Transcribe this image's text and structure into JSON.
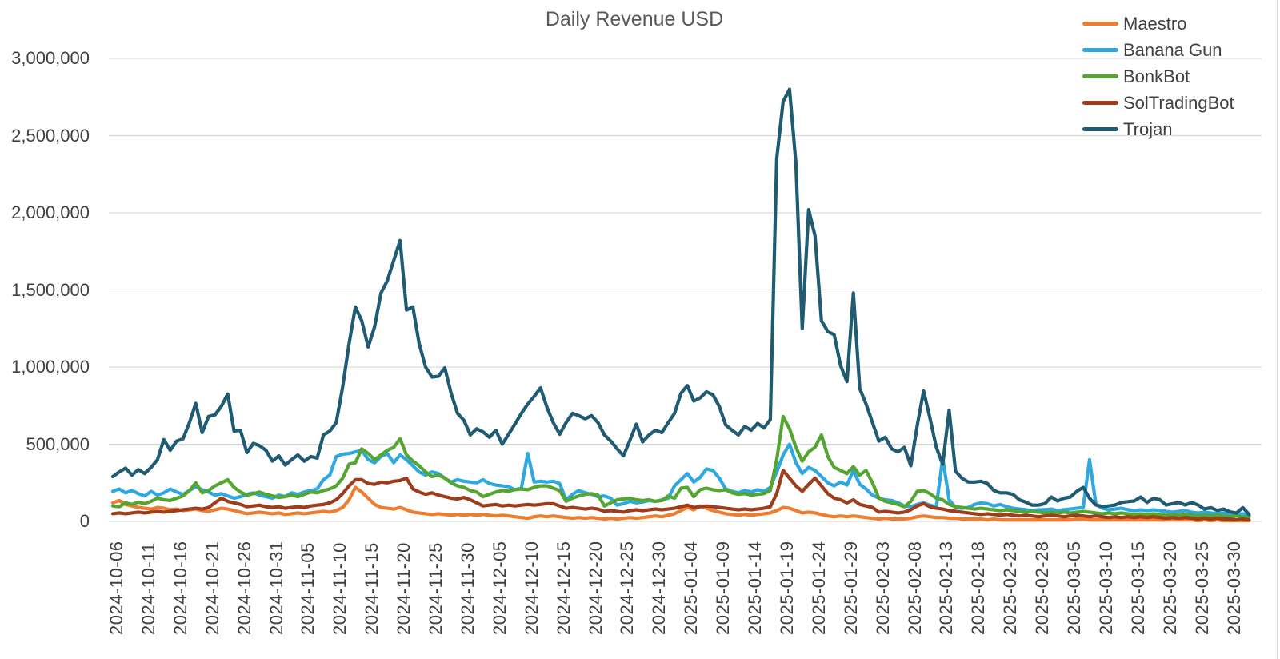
{
  "styles": {
    "background": "#FFFFFF",
    "grid_color": "#D9D9D9",
    "axis_text_color": "#404040",
    "title_color": "#595959"
  },
  "chart_data": {
    "type": "line",
    "title": "Daily Revenue USD",
    "x_start": "2024-10-06",
    "x_end": "2025-04-02",
    "x_frequency": "daily",
    "grid": "horizontal",
    "legend_position": "top-right",
    "ylim": [
      0,
      3000000
    ],
    "y_tick_interval": 500000,
    "y_tick_labels": [
      "0",
      "500,000",
      "1,000,000",
      "1,500,000",
      "2,000,000",
      "2,500,000",
      "3,000,000"
    ],
    "x_tick_every_n_points": 5,
    "x_tick_labels": [
      "2024-10-06",
      "2024-10-11",
      "2024-10-16",
      "2024-10-21",
      "2024-10-26",
      "2024-10-31",
      "2024-11-05",
      "2024-11-10",
      "2024-11-15",
      "2024-11-20",
      "2024-11-25",
      "2024-11-30",
      "2024-12-05",
      "2024-12-10",
      "2024-12-15",
      "2024-12-20",
      "2024-12-25",
      "2024-12-30",
      "2025-01-04",
      "2025-01-09",
      "2025-01-14",
      "2025-01-19",
      "2025-01-24",
      "2025-01-29",
      "2025-02-03",
      "2025-02-08",
      "2025-02-13",
      "2025-02-18",
      "2025-02-23",
      "2025-02-28",
      "2025-03-05",
      "2025-03-10",
      "2025-03-15",
      "2025-03-20",
      "2025-03-25",
      "2025-03-30"
    ],
    "series": [
      {
        "name": "Maestro",
        "color": "#ED7D31",
        "values": [
          120000,
          135000,
          110000,
          100000,
          90000,
          85000,
          80000,
          90000,
          85000,
          75000,
          80000,
          70000,
          75000,
          80000,
          70000,
          65000,
          75000,
          85000,
          80000,
          70000,
          60000,
          50000,
          55000,
          60000,
          55000,
          50000,
          55000,
          45000,
          50000,
          55000,
          50000,
          55000,
          60000,
          65000,
          60000,
          70000,
          90000,
          140000,
          220000,
          190000,
          150000,
          110000,
          90000,
          85000,
          80000,
          90000,
          75000,
          60000,
          55000,
          50000,
          45000,
          50000,
          45000,
          40000,
          45000,
          40000,
          45000,
          40000,
          45000,
          40000,
          35000,
          40000,
          35000,
          30000,
          25000,
          20000,
          30000,
          35000,
          30000,
          35000,
          30000,
          25000,
          20000,
          25000,
          20000,
          25000,
          20000,
          15000,
          20000,
          15000,
          20000,
          25000,
          20000,
          25000,
          30000,
          35000,
          30000,
          40000,
          50000,
          70000,
          90000,
          75000,
          100000,
          85000,
          70000,
          60000,
          50000,
          45000,
          40000,
          45000,
          40000,
          45000,
          50000,
          55000,
          70000,
          90000,
          85000,
          70000,
          55000,
          60000,
          55000,
          45000,
          35000,
          30000,
          35000,
          30000,
          35000,
          30000,
          25000,
          20000,
          15000,
          20000,
          15000,
          15000,
          15000,
          20000,
          30000,
          35000,
          30000,
          25000,
          25000,
          20000,
          20000,
          15000,
          15000,
          15000,
          15000,
          10000,
          15000,
          10000,
          10000,
          10000,
          10000,
          10000,
          10000,
          10000,
          10000,
          10000,
          10000,
          10000,
          10000,
          15000,
          15000,
          10000,
          10000,
          10000,
          10000,
          10000,
          10000,
          10000,
          10000,
          10000,
          10000,
          10000,
          10000,
          10000,
          10000,
          10000,
          10000,
          10000,
          5000,
          10000,
          5000,
          10000,
          5000,
          5000,
          5000,
          5000,
          5000
        ]
      },
      {
        "name": "Banana Gun",
        "color": "#2EA8DF",
        "values": [
          195000,
          210000,
          185000,
          200000,
          180000,
          165000,
          195000,
          170000,
          185000,
          210000,
          190000,
          175000,
          200000,
          225000,
          205000,
          190000,
          170000,
          180000,
          165000,
          150000,
          160000,
          175000,
          185000,
          170000,
          160000,
          150000,
          170000,
          160000,
          185000,
          175000,
          190000,
          200000,
          210000,
          270000,
          300000,
          420000,
          435000,
          440000,
          450000,
          460000,
          400000,
          380000,
          420000,
          440000,
          380000,
          430000,
          400000,
          360000,
          320000,
          300000,
          320000,
          310000,
          280000,
          255000,
          270000,
          260000,
          255000,
          250000,
          270000,
          245000,
          235000,
          230000,
          225000,
          205000,
          215000,
          440000,
          255000,
          260000,
          255000,
          260000,
          245000,
          140000,
          175000,
          200000,
          185000,
          175000,
          160000,
          165000,
          150000,
          105000,
          115000,
          130000,
          120000,
          125000,
          135000,
          130000,
          140000,
          150000,
          230000,
          270000,
          310000,
          255000,
          285000,
          340000,
          330000,
          280000,
          210000,
          195000,
          185000,
          200000,
          190000,
          205000,
          195000,
          220000,
          320000,
          430000,
          500000,
          380000,
          310000,
          350000,
          330000,
          290000,
          250000,
          230000,
          255000,
          235000,
          330000,
          240000,
          210000,
          170000,
          150000,
          140000,
          135000,
          120000,
          100000,
          95000,
          110000,
          120000,
          105000,
          95000,
          410000,
          140000,
          90000,
          85000,
          90000,
          110000,
          120000,
          115000,
          100000,
          110000,
          95000,
          85000,
          80000,
          75000,
          70000,
          75000,
          75000,
          80000,
          70000,
          75000,
          80000,
          85000,
          90000,
          400000,
          110000,
          85000,
          75000,
          80000,
          85000,
          75000,
          70000,
          75000,
          70000,
          75000,
          70000,
          65000,
          60000,
          65000,
          70000,
          60000,
          55000,
          60000,
          55000,
          50000,
          55000,
          50000,
          45000,
          50000,
          40000
        ]
      },
      {
        "name": "BonkBot",
        "color": "#55A630",
        "values": [
          100000,
          95000,
          120000,
          110000,
          125000,
          115000,
          130000,
          150000,
          140000,
          135000,
          150000,
          165000,
          200000,
          250000,
          185000,
          200000,
          230000,
          250000,
          270000,
          220000,
          190000,
          170000,
          180000,
          190000,
          175000,
          165000,
          155000,
          160000,
          170000,
          160000,
          175000,
          190000,
          185000,
          200000,
          210000,
          230000,
          280000,
          370000,
          380000,
          470000,
          440000,
          400000,
          430000,
          460000,
          480000,
          535000,
          430000,
          390000,
          360000,
          320000,
          290000,
          300000,
          280000,
          250000,
          230000,
          220000,
          200000,
          190000,
          160000,
          175000,
          190000,
          200000,
          195000,
          205000,
          210000,
          205000,
          220000,
          230000,
          230000,
          215000,
          200000,
          130000,
          150000,
          165000,
          175000,
          180000,
          170000,
          100000,
          120000,
          140000,
          145000,
          150000,
          140000,
          135000,
          140000,
          130000,
          135000,
          165000,
          150000,
          215000,
          220000,
          160000,
          205000,
          215000,
          205000,
          200000,
          205000,
          185000,
          175000,
          180000,
          170000,
          175000,
          180000,
          200000,
          400000,
          680000,
          600000,
          480000,
          390000,
          450000,
          480000,
          560000,
          420000,
          350000,
          330000,
          310000,
          355000,
          300000,
          330000,
          250000,
          150000,
          130000,
          120000,
          110000,
          95000,
          130000,
          195000,
          200000,
          180000,
          150000,
          140000,
          110000,
          95000,
          90000,
          85000,
          80000,
          85000,
          80000,
          75000,
          70000,
          75000,
          70000,
          65000,
          60000,
          65000,
          60000,
          55000,
          60000,
          55000,
          60000,
          55000,
          60000,
          65000,
          60000,
          55000,
          50000,
          55000,
          50000,
          55000,
          50000,
          45000,
          50000,
          45000,
          50000,
          45000,
          40000,
          45000,
          40000,
          45000,
          40000,
          35000,
          40000,
          35000,
          40000,
          35000,
          30000,
          35000,
          30000,
          30000
        ]
      },
      {
        "name": "SolTradingBot",
        "color": "#9E3D1C",
        "values": [
          50000,
          55000,
          50000,
          55000,
          60000,
          55000,
          60000,
          65000,
          60000,
          65000,
          70000,
          75000,
          80000,
          85000,
          80000,
          90000,
          120000,
          150000,
          130000,
          120000,
          110000,
          95000,
          100000,
          105000,
          95000,
          90000,
          95000,
          85000,
          90000,
          95000,
          90000,
          100000,
          105000,
          110000,
          120000,
          140000,
          180000,
          230000,
          270000,
          270000,
          245000,
          240000,
          255000,
          250000,
          260000,
          265000,
          280000,
          210000,
          190000,
          175000,
          185000,
          170000,
          160000,
          150000,
          145000,
          155000,
          140000,
          120000,
          100000,
          105000,
          110000,
          100000,
          105000,
          100000,
          105000,
          110000,
          105000,
          110000,
          115000,
          115000,
          100000,
          85000,
          90000,
          85000,
          80000,
          85000,
          80000,
          65000,
          70000,
          65000,
          60000,
          70000,
          75000,
          70000,
          75000,
          80000,
          75000,
          80000,
          85000,
          95000,
          105000,
          90000,
          95000,
          100000,
          95000,
          90000,
          85000,
          80000,
          75000,
          80000,
          75000,
          80000,
          85000,
          95000,
          180000,
          330000,
          280000,
          230000,
          195000,
          240000,
          280000,
          230000,
          180000,
          150000,
          140000,
          120000,
          140000,
          110000,
          100000,
          90000,
          60000,
          65000,
          60000,
          55000,
          60000,
          75000,
          100000,
          115000,
          95000,
          85000,
          80000,
          70000,
          65000,
          60000,
          55000,
          50000,
          45000,
          50000,
          45000,
          40000,
          45000,
          40000,
          35000,
          40000,
          35000,
          30000,
          35000,
          40000,
          35000,
          30000,
          35000,
          40000,
          35000,
          30000,
          35000,
          30000,
          25000,
          30000,
          25000,
          30000,
          25000,
          30000,
          25000,
          30000,
          25000,
          20000,
          25000,
          20000,
          25000,
          20000,
          15000,
          20000,
          15000,
          20000,
          15000,
          15000,
          10000,
          15000,
          10000
        ]
      },
      {
        "name": "Trojan",
        "color": "#1F5B73",
        "values": [
          290000,
          320000,
          345000,
          300000,
          335000,
          310000,
          350000,
          400000,
          530000,
          460000,
          520000,
          535000,
          640000,
          765000,
          575000,
          680000,
          690000,
          745000,
          825000,
          585000,
          590000,
          445000,
          505000,
          490000,
          460000,
          390000,
          425000,
          365000,
          400000,
          430000,
          390000,
          420000,
          410000,
          560000,
          585000,
          640000,
          870000,
          1150000,
          1390000,
          1300000,
          1130000,
          1260000,
          1480000,
          1560000,
          1690000,
          1820000,
          1370000,
          1390000,
          1150000,
          1000000,
          935000,
          940000,
          995000,
          830000,
          700000,
          655000,
          560000,
          600000,
          580000,
          545000,
          590000,
          500000,
          565000,
          630000,
          700000,
          760000,
          810000,
          865000,
          740000,
          640000,
          565000,
          640000,
          700000,
          685000,
          665000,
          685000,
          640000,
          560000,
          520000,
          470000,
          425000,
          525000,
          630000,
          515000,
          560000,
          590000,
          575000,
          640000,
          700000,
          830000,
          880000,
          780000,
          800000,
          840000,
          820000,
          745000,
          625000,
          590000,
          560000,
          615000,
          590000,
          635000,
          605000,
          660000,
          2350000,
          2720000,
          2800000,
          2320000,
          1250000,
          2020000,
          1850000,
          1300000,
          1230000,
          1210000,
          1010000,
          905000,
          1480000,
          860000,
          760000,
          640000,
          520000,
          545000,
          470000,
          450000,
          480000,
          360000,
          620000,
          845000,
          670000,
          480000,
          370000,
          720000,
          325000,
          280000,
          255000,
          255000,
          260000,
          245000,
          200000,
          185000,
          185000,
          175000,
          140000,
          125000,
          105000,
          105000,
          115000,
          158000,
          132000,
          150000,
          158000,
          195000,
          220000,
          150000,
          106000,
          97000,
          100000,
          106000,
          123000,
          128000,
          132000,
          158000,
          123000,
          149000,
          141000,
          106000,
          115000,
          123000,
          106000,
          123000,
          106000,
          80000,
          89000,
          71000,
          80000,
          62000,
          54000,
          89000,
          45000
        ]
      }
    ]
  }
}
